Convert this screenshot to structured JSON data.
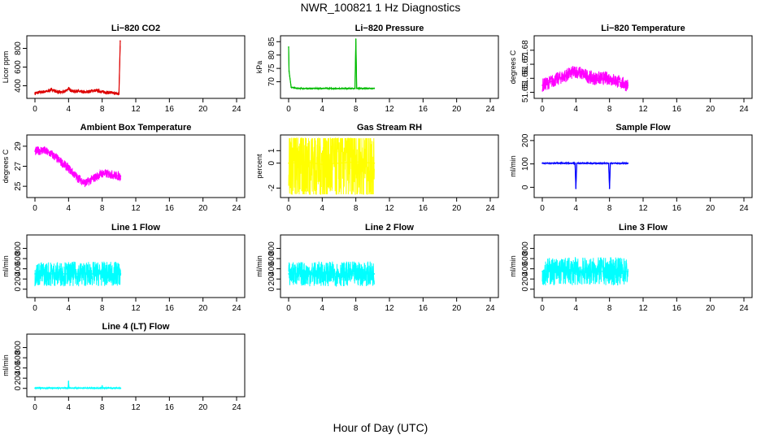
{
  "title": "NWR_100821 1 Hz Diagnostics",
  "xlabel": "Hour of Day (UTC)",
  "chart_data": [
    {
      "type": "line",
      "title": "Li−820 CO2",
      "ylabel": "Licor ppm",
      "color": "#dd0000",
      "xlim": [
        0,
        24
      ],
      "ylim": [
        300,
        900
      ],
      "yticks": [
        400,
        600,
        800
      ],
      "xticks": [
        0,
        4,
        8,
        12,
        16,
        20,
        24
      ],
      "x": [
        0,
        0.5,
        1,
        1.5,
        2,
        2.5,
        3,
        3.5,
        4,
        4.5,
        5,
        5.5,
        6,
        6.5,
        7,
        7.5,
        8,
        8.5,
        9,
        9.5,
        10,
        10.15
      ],
      "y": [
        320,
        330,
        335,
        340,
        360,
        340,
        330,
        335,
        370,
        340,
        345,
        335,
        330,
        340,
        350,
        345,
        335,
        330,
        325,
        320,
        310,
        880
      ]
    },
    {
      "type": "line",
      "title": "Li−820 Pressure",
      "ylabel": "kPa",
      "color": "#00bb00",
      "xlim": [
        0,
        24
      ],
      "ylim": [
        65,
        86
      ],
      "yticks": [
        70,
        75,
        80,
        85
      ],
      "xticks": [
        0,
        4,
        8,
        12,
        16,
        20,
        24
      ],
      "x": [
        0,
        0.05,
        0.3,
        1,
        2,
        4,
        6,
        7.9,
        8,
        8.1,
        9,
        10.2
      ],
      "y": [
        83,
        74,
        68,
        67.5,
        67.5,
        67.5,
        67.5,
        67.5,
        86,
        67.5,
        67.5,
        67.5
      ]
    },
    {
      "type": "line",
      "title": "Li−820 Temperature",
      "ylabel": "degrees C",
      "color": "#ff00ff",
      "xlim": [
        0,
        24
      ],
      "ylim": [
        51.648,
        51.688
      ],
      "yticks": [
        51.65,
        51.66,
        51.67,
        51.68
      ],
      "xticks": [
        0,
        4,
        8,
        12,
        16,
        20,
        24
      ],
      "x": [
        0,
        2,
        4,
        6,
        8,
        10.2
      ],
      "y": [
        51.655,
        51.66,
        51.665,
        51.66,
        51.66,
        51.655
      ]
    },
    {
      "type": "line",
      "title": "Ambient Box Temperature",
      "ylabel": "degrees C",
      "color": "#ff00ff",
      "xlim": [
        0,
        24
      ],
      "ylim": [
        24.2,
        29.8
      ],
      "yticks": [
        25,
        27,
        29
      ],
      "xticks": [
        0,
        4,
        8,
        12,
        16,
        20,
        24
      ],
      "x": [
        0,
        1,
        2,
        3,
        4,
        5,
        6,
        7,
        8,
        9,
        10,
        10.2
      ],
      "y": [
        28.5,
        28.6,
        28.2,
        27.5,
        26.8,
        25.9,
        25.3,
        25.8,
        26.3,
        26.2,
        26.0,
        26.0
      ]
    },
    {
      "type": "line",
      "title": "Gas Stream RH",
      "ylabel": "percent",
      "color": "#ffff00",
      "xlim": [
        0,
        24
      ],
      "ylim": [
        -2.5,
        2
      ],
      "yticks": [
        -2,
        0,
        1
      ],
      "xticks": [
        0,
        4,
        8,
        12,
        16,
        20,
        24
      ],
      "x": [
        0,
        2,
        4,
        6,
        8,
        10.2
      ],
      "y": [
        0,
        0.1,
        -0.1,
        0,
        0.1,
        0
      ]
    },
    {
      "type": "line",
      "title": "Sample Flow",
      "ylabel": "ml/min",
      "color": "#0000ff",
      "xlim": [
        0,
        24
      ],
      "ylim": [
        -30,
        210
      ],
      "yticks": [
        0,
        100,
        200
      ],
      "xticks": [
        0,
        4,
        8,
        12,
        16,
        20,
        24
      ],
      "x": [
        0,
        2,
        3.9,
        4,
        4.1,
        6,
        7.9,
        8,
        8.1,
        10.2
      ],
      "y": [
        103,
        103,
        103,
        -5,
        103,
        103,
        103,
        -5,
        103,
        103
      ]
    },
    {
      "type": "line",
      "title": "Line 1 Flow",
      "ylabel": "ml/min",
      "color": "#00ffff",
      "xlim": [
        0,
        24
      ],
      "ylim": [
        -100,
        1000
      ],
      "yticks": [
        0,
        200,
        400,
        600,
        800
      ],
      "xticks": [
        0,
        4,
        8,
        12,
        16,
        20,
        24
      ],
      "x": [
        0,
        2,
        4,
        6,
        8,
        10.2
      ],
      "y": [
        300,
        300,
        300,
        300,
        300,
        300
      ]
    },
    {
      "type": "line",
      "title": "Line 2 Flow",
      "ylabel": "ml/min",
      "color": "#00ffff",
      "xlim": [
        0,
        24
      ],
      "ylim": [
        -100,
        1000
      ],
      "yticks": [
        0,
        200,
        400,
        600,
        800
      ],
      "xticks": [
        0,
        4,
        8,
        12,
        16,
        20,
        24
      ],
      "x": [
        0,
        2,
        4,
        6,
        8,
        10.2
      ],
      "y": [
        300,
        300,
        300,
        300,
        300,
        300
      ]
    },
    {
      "type": "line",
      "title": "Line 3 Flow",
      "ylabel": "ml/min",
      "color": "#00ffff",
      "xlim": [
        0,
        24
      ],
      "ylim": [
        -100,
        1000
      ],
      "yticks": [
        0,
        200,
        400,
        600,
        800
      ],
      "xticks": [
        0,
        4,
        8,
        12,
        16,
        20,
        24
      ],
      "x": [
        0,
        2,
        4,
        6,
        8,
        10.2
      ],
      "y": [
        350,
        350,
        350,
        350,
        350,
        350
      ]
    },
    {
      "type": "line",
      "title": "Line 4 (LT) Flow",
      "ylabel": "ml/min",
      "color": "#00ffff",
      "xlim": [
        0,
        24
      ],
      "ylim": [
        -100,
        1000
      ],
      "yticks": [
        0,
        200,
        400,
        600,
        800
      ],
      "xticks": [
        0,
        4,
        8,
        12,
        16,
        20,
        24
      ],
      "x": [
        0,
        2,
        3.95,
        4,
        4.05,
        6,
        7.95,
        8,
        8.05,
        10.2
      ],
      "y": [
        5,
        5,
        5,
        140,
        5,
        5,
        5,
        50,
        5,
        5
      ]
    }
  ]
}
